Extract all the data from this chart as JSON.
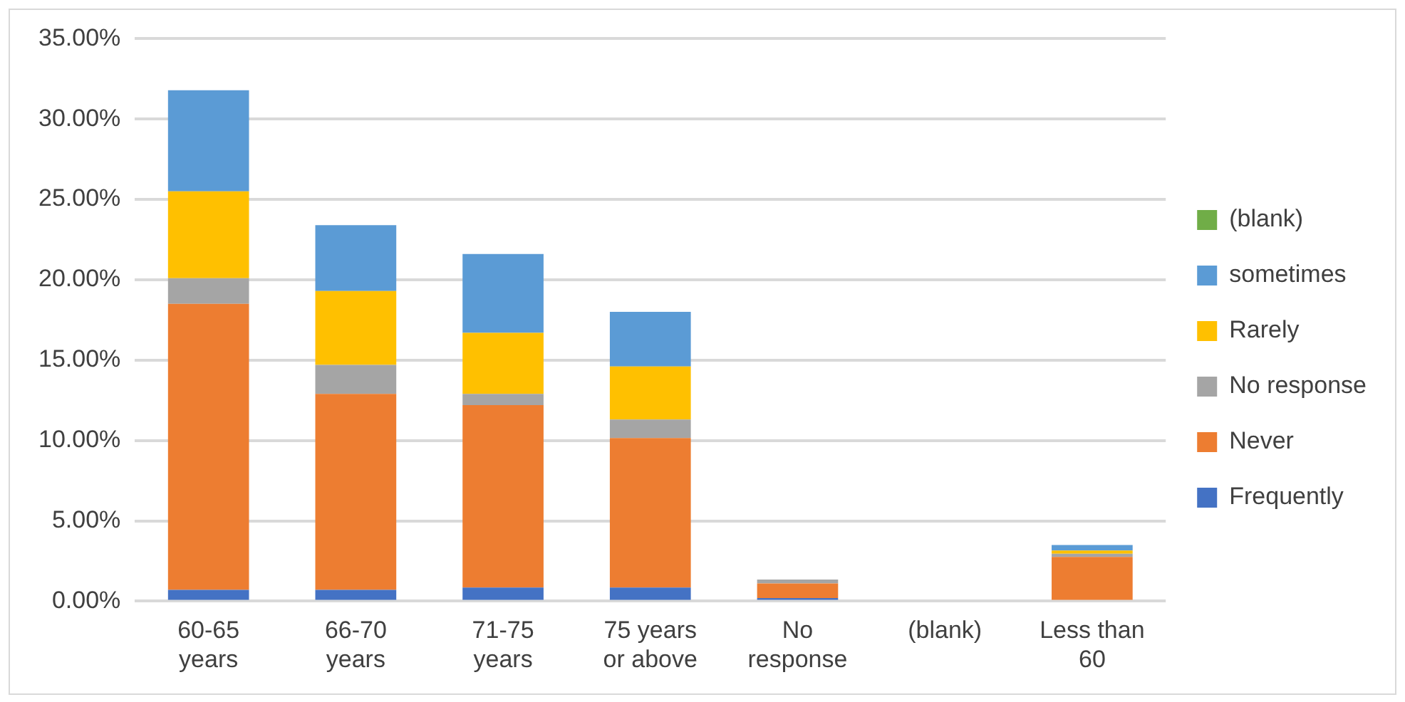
{
  "chart_data": {
    "type": "bar",
    "stacked": true,
    "categories": [
      "60-65 years",
      "66-70 years",
      "71-75 years",
      "75 years or above",
      "No response",
      "(blank)",
      "Less than 60"
    ],
    "series": [
      {
        "name": "Frequently",
        "color": "#4472c4",
        "values": [
          0.7,
          0.7,
          0.85,
          0.85,
          0.2,
          0,
          0
        ]
      },
      {
        "name": "Never",
        "color": "#ed7d31",
        "values": [
          17.8,
          12.2,
          11.35,
          9.3,
          0.9,
          0,
          2.75
        ]
      },
      {
        "name": "No response",
        "color": "#a5a5a5",
        "values": [
          1.6,
          1.8,
          0.7,
          1.15,
          0.25,
          0,
          0.2
        ]
      },
      {
        "name": "Rarely",
        "color": "#ffc000",
        "values": [
          5.4,
          4.6,
          3.8,
          3.3,
          0,
          0,
          0.2
        ]
      },
      {
        "name": "sometimes",
        "color": "#5b9bd5",
        "values": [
          6.3,
          4.1,
          4.9,
          3.4,
          0,
          0,
          0.35
        ]
      },
      {
        "name": "(blank)",
        "color": "#70ad47",
        "values": [
          0,
          0,
          0,
          0,
          0,
          0,
          0
        ]
      }
    ],
    "ylim": [
      0,
      35
    ],
    "yticks": [
      {
        "value": 0,
        "label": "0.00%"
      },
      {
        "value": 5,
        "label": "5.00%"
      },
      {
        "value": 10,
        "label": "10.00%"
      },
      {
        "value": 15,
        "label": "15.00%"
      },
      {
        "value": 20,
        "label": "20.00%"
      },
      {
        "value": 25,
        "label": "25.00%"
      },
      {
        "value": 30,
        "label": "30.00%"
      },
      {
        "value": 35,
        "label": "35.00%"
      }
    ],
    "grid": "y",
    "legend": "right"
  }
}
